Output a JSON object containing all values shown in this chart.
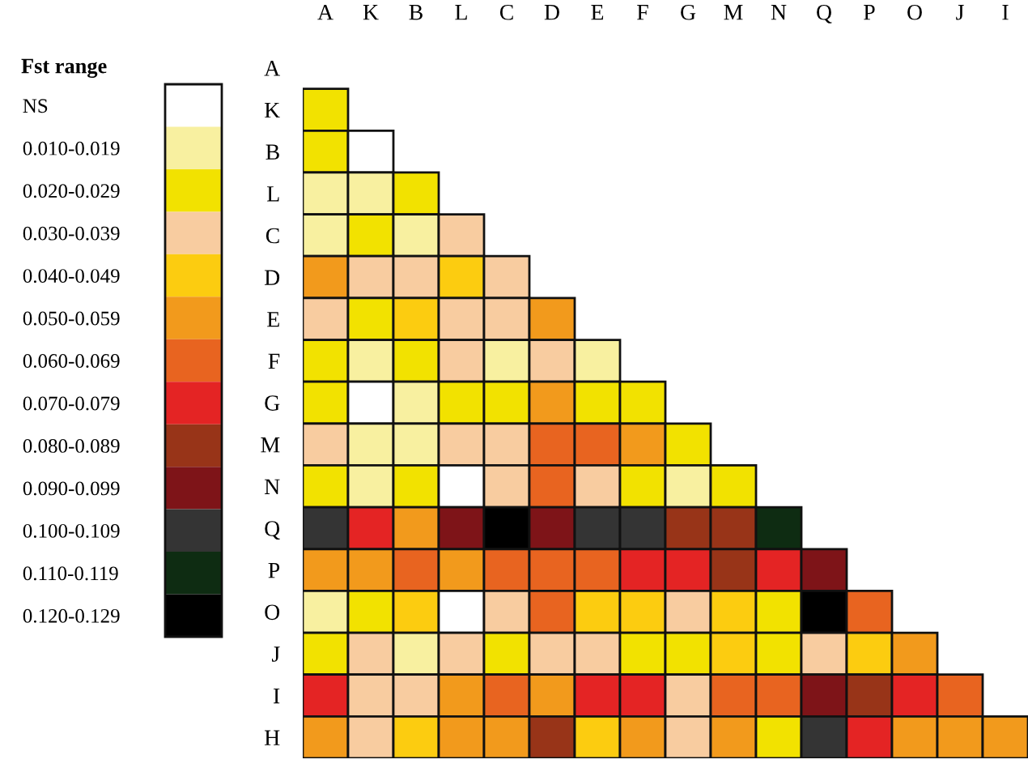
{
  "chart_data": {
    "type": "heatmap",
    "clabel": "Fst range",
    "categories": [
      "A",
      "K",
      "B",
      "L",
      "C",
      "D",
      "E",
      "F",
      "G",
      "M",
      "N",
      "Q",
      "P",
      "O",
      "J",
      "I"
    ],
    "y_categories": [
      "A",
      "K",
      "B",
      "L",
      "C",
      "D",
      "E",
      "F",
      "G",
      "M",
      "N",
      "Q",
      "P",
      "O",
      "J",
      "I",
      "H"
    ],
    "cells": [
      [
        null,
        null,
        null,
        null,
        null,
        null,
        null,
        null,
        null,
        null,
        null,
        null,
        null,
        null,
        null,
        null
      ],
      [
        0.02,
        null,
        null,
        null,
        null,
        null,
        null,
        null,
        null,
        null,
        null,
        null,
        null,
        null,
        null,
        null
      ],
      [
        0.02,
        0,
        null,
        null,
        null,
        null,
        null,
        null,
        null,
        null,
        null,
        null,
        null,
        null,
        null,
        null
      ],
      [
        0.01,
        0.01,
        0.02,
        null,
        null,
        null,
        null,
        null,
        null,
        null,
        null,
        null,
        null,
        null,
        null,
        null
      ],
      [
        0.01,
        0.02,
        0.01,
        0.03,
        null,
        null,
        null,
        null,
        null,
        null,
        null,
        null,
        null,
        null,
        null,
        null
      ],
      [
        0.05,
        0.03,
        0.03,
        0.04,
        0.03,
        null,
        null,
        null,
        null,
        null,
        null,
        null,
        null,
        null,
        null,
        null
      ],
      [
        0.03,
        0.02,
        0.04,
        0.03,
        0.03,
        0.05,
        null,
        null,
        null,
        null,
        null,
        null,
        null,
        null,
        null,
        null
      ],
      [
        0.02,
        0.01,
        0.02,
        0.03,
        0.01,
        0.03,
        0.01,
        null,
        null,
        null,
        null,
        null,
        null,
        null,
        null,
        null
      ],
      [
        0.02,
        0,
        0.01,
        0.02,
        0.02,
        0.05,
        0.02,
        0.02,
        null,
        null,
        null,
        null,
        null,
        null,
        null,
        null
      ],
      [
        0.03,
        0.01,
        0.01,
        0.03,
        0.03,
        0.06,
        0.06,
        0.05,
        0.02,
        null,
        null,
        null,
        null,
        null,
        null,
        null
      ],
      [
        0.02,
        0.01,
        0.02,
        0,
        0.03,
        0.06,
        0.03,
        0.02,
        0.01,
        0.02,
        null,
        null,
        null,
        null,
        null,
        null
      ],
      [
        0.1,
        0.07,
        0.05,
        0.09,
        0.12,
        0.09,
        0.1,
        0.1,
        0.08,
        0.08,
        0.11,
        null,
        null,
        null,
        null,
        null
      ],
      [
        0.05,
        0.05,
        0.06,
        0.05,
        0.06,
        0.06,
        0.06,
        0.07,
        0.07,
        0.08,
        0.07,
        0.09,
        null,
        null,
        null,
        null
      ],
      [
        0.01,
        0.02,
        0.04,
        0,
        0.03,
        0.06,
        0.04,
        0.04,
        0.03,
        0.04,
        0.02,
        0.12,
        0.06,
        null,
        null,
        null
      ],
      [
        0.02,
        0.03,
        0.01,
        0.03,
        0.02,
        0.03,
        0.03,
        0.02,
        0.02,
        0.04,
        0.02,
        0.03,
        0.04,
        0.05,
        null,
        null
      ],
      [
        0.07,
        0.03,
        0.03,
        0.05,
        0.06,
        0.05,
        0.07,
        0.07,
        0.03,
        0.06,
        0.06,
        0.09,
        0.08,
        0.07,
        0.06,
        null
      ],
      [
        0.05,
        0.03,
        0.04,
        0.05,
        0.05,
        0.08,
        0.04,
        0.05,
        0.03,
        0.05,
        0.02,
        0.1,
        0.07,
        0.05,
        0.05,
        0.05
      ]
    ],
    "clim": [
      0,
      0.13
    ],
    "cticks": [
      {
        "value": 0.005,
        "label": "NS"
      },
      {
        "value": 0.015,
        "label": "0.010-0.019"
      },
      {
        "value": 0.025,
        "label": "0.020-0.029"
      },
      {
        "value": 0.035,
        "label": "0.030-0.039"
      },
      {
        "value": 0.045,
        "label": "0.040-0.049"
      },
      {
        "value": 0.055,
        "label": "0.050-0.059"
      },
      {
        "value": 0.065,
        "label": "0.060-0.069"
      },
      {
        "value": 0.075,
        "label": "0.070-0.079"
      },
      {
        "value": 0.085,
        "label": "0.080-0.089"
      },
      {
        "value": 0.095,
        "label": "0.090-0.099"
      },
      {
        "value": 0.105,
        "label": "0.100-0.109"
      },
      {
        "value": 0.115,
        "label": "0.110-0.119"
      },
      {
        "value": 0.125,
        "label": "0.120-0.129"
      }
    ],
    "colors": [
      "#ffffff",
      "#f8f0a0",
      "#f2e200",
      "#f8cca0",
      "#fccc10",
      "#f29a1c",
      "#e86420",
      "#e42424",
      "#983418",
      "#7e1418",
      "#343434",
      "#0e2c12",
      "#000000"
    ]
  }
}
